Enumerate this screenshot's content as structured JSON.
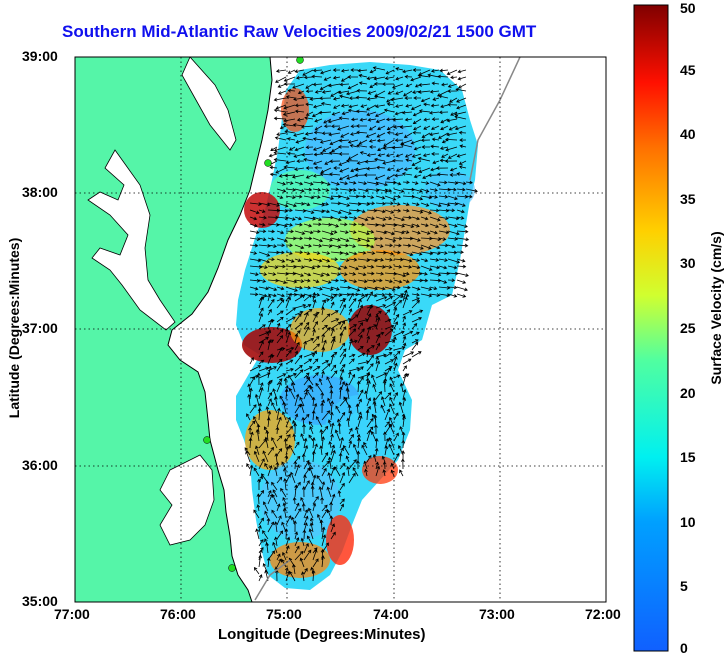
{
  "title": "Southern Mid-Atlantic Raw Velocities 2009/02/21 1500 GMT",
  "xlabel": "Longitude (Degrees:Minutes)",
  "ylabel": "Latitude (Degrees:Minutes)",
  "colorbar": {
    "label": "Surface Velocity (cm/s)",
    "range": [
      0,
      50
    ],
    "ticks": [
      "0",
      "5",
      "10",
      "15",
      "20",
      "25",
      "30",
      "35",
      "40",
      "45",
      "50"
    ]
  },
  "x_ticks": [
    "77:00",
    "76:00",
    "75:00",
    "74:00",
    "73:00",
    "72:00"
  ],
  "y_ticks": [
    "39:00",
    "38:00",
    "37:00",
    "36:00",
    "35:00"
  ],
  "colors": {
    "land": "#55f5a8",
    "coast": "#000000",
    "title": "#1010ee",
    "grid": "#000000",
    "stations": "#22dd22"
  }
}
